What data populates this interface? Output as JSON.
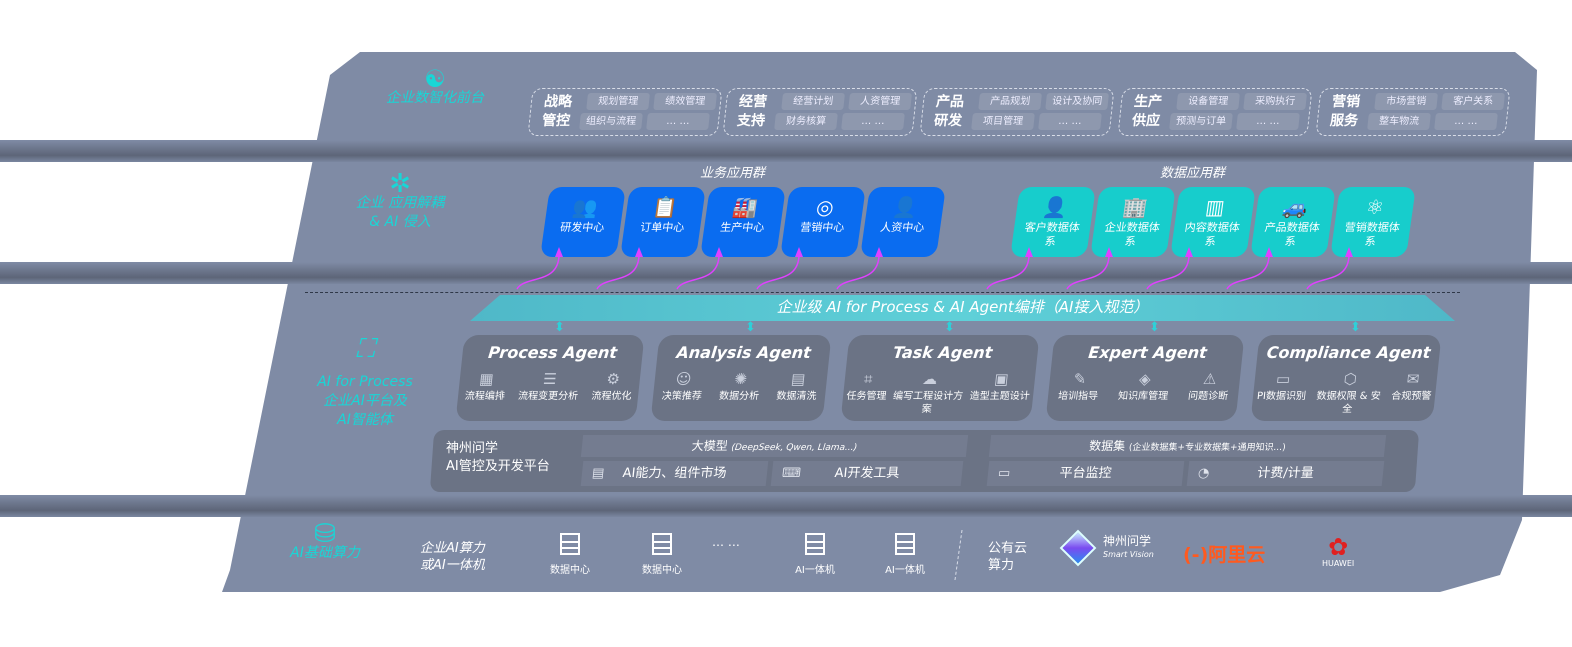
{
  "layers": {
    "front": {
      "label": "企业数智化前台",
      "icon": "brain-head-icon"
    },
    "apps": {
      "label_line1": "企业 应用解耦",
      "label_line2": "& AI 侵入",
      "icon": "molecule-icon"
    },
    "ai": {
      "label_line1": "AI for Process",
      "label_line2": "企业AI平台及",
      "label_line3": "AI智能体",
      "icon": "face-scan-icon"
    },
    "compute": {
      "label": "AI基础算力",
      "icon": "database-icon"
    }
  },
  "front_groups": [
    {
      "title": "战略管控",
      "chips": [
        "规划管理",
        "绩效管理",
        "组织与流程",
        "… …"
      ]
    },
    {
      "title": "经营支持",
      "chips": [
        "经营计划",
        "人资管理",
        "财务核算",
        "… …"
      ]
    },
    {
      "title": "产品研发",
      "chips": [
        "产品规划",
        "设计及协同",
        "项目管理",
        "… …"
      ]
    },
    {
      "title": "生产供应",
      "chips": [
        "设备管理",
        "采购执行",
        "预测与订单",
        "… …"
      ]
    },
    {
      "title": "营销服务",
      "chips": [
        "市场营销",
        "客户关系",
        "整车物流",
        "… …"
      ]
    }
  ],
  "business_apps": {
    "title": "业务应用群",
    "color": "#0a6cf0",
    "items": [
      {
        "label": "研发中心",
        "icon": "users-icon",
        "glyph": "👥"
      },
      {
        "label": "订单中心",
        "icon": "clipboard-icon",
        "glyph": "📋"
      },
      {
        "label": "生产中心",
        "icon": "factory-icon",
        "glyph": "🏭"
      },
      {
        "label": "营销中心",
        "icon": "target-icon",
        "glyph": "◎"
      },
      {
        "label": "人资中心",
        "icon": "person-icon",
        "glyph": "👤"
      }
    ]
  },
  "data_apps": {
    "title": "数据应用群",
    "color": "#17cdcc",
    "items": [
      {
        "label": "客户数据体系",
        "icon": "user-icon",
        "glyph": "👤"
      },
      {
        "label": "企业数据体系",
        "icon": "building-icon",
        "glyph": "🏢"
      },
      {
        "label": "内容数据体系",
        "icon": "books-icon",
        "glyph": "▥"
      },
      {
        "label": "产品数据体系",
        "icon": "car-icon",
        "glyph": "🚙"
      },
      {
        "label": "营销数据体系",
        "icon": "atom-icon",
        "glyph": "⚛"
      }
    ]
  },
  "banner": "企业级 AI for Process & AI Agent编排（AI接入规范）",
  "agents": [
    {
      "name": "Process Agent",
      "items": [
        {
          "label": "流程编排",
          "glyph": "▦"
        },
        {
          "label": "流程变更分析",
          "glyph": "☰"
        },
        {
          "label": "流程优化",
          "glyph": "⚙"
        }
      ]
    },
    {
      "name": "Analysis Agent",
      "items": [
        {
          "label": "决策推荐",
          "glyph": "☺"
        },
        {
          "label": "数据分析",
          "glyph": "✺"
        },
        {
          "label": "数据清洗",
          "glyph": "▤"
        }
      ]
    },
    {
      "name": "Task Agent",
      "items": [
        {
          "label": "任务管理",
          "glyph": "⌗"
        },
        {
          "label": "编写工程设计方案",
          "glyph": "☁"
        },
        {
          "label": "造型主题设计",
          "glyph": "▣"
        }
      ]
    },
    {
      "name": "Expert Agent",
      "items": [
        {
          "label": "培训指导",
          "glyph": "✎"
        },
        {
          "label": "知识库管理",
          "glyph": "◈"
        },
        {
          "label": "问题诊断",
          "glyph": "⚠"
        }
      ]
    },
    {
      "name": "Compliance Agent",
      "items": [
        {
          "label": "PI数据识别",
          "glyph": "▭"
        },
        {
          "label": "数据权限 & 安全",
          "glyph": "⬡"
        },
        {
          "label": "合规预警",
          "glyph": "✉"
        }
      ]
    }
  ],
  "platform": {
    "title_line1": "神州问学",
    "title_line2": "AI管控及开发平台",
    "llm": "大模型",
    "llm_note": "(DeepSeek, Qwen, Llama...)",
    "dataset": "数据集",
    "dataset_note": "(企业数据集+专业数据集+通用知识...)",
    "tools": [
      {
        "label": "AI能力、组件市场",
        "icon": "market-icon",
        "glyph": "▤"
      },
      {
        "label": "AI开发工具",
        "icon": "dev-tool-icon",
        "glyph": "⌨"
      },
      {
        "label": "平台监控",
        "icon": "monitor-icon",
        "glyph": "▭"
      },
      {
        "label": "计费/计量",
        "icon": "gauge-icon",
        "glyph": "◔"
      }
    ]
  },
  "compute": {
    "enterprise_line1": "企业AI算力",
    "enterprise_line2": "或AI一体机",
    "servers": [
      "数据中心",
      "数据中心",
      "… …",
      "AI一体机",
      "AI一体机"
    ],
    "public_line1": "公有云",
    "public_line2": "算力",
    "vendors": [
      {
        "name": "神州问学",
        "sub": "Smart Vision",
        "color": "#ffffff"
      },
      {
        "name": "(-)阿里云",
        "color": "#ff5a1f"
      },
      {
        "name": "HUAWEI",
        "color": "#e02020"
      }
    ]
  }
}
